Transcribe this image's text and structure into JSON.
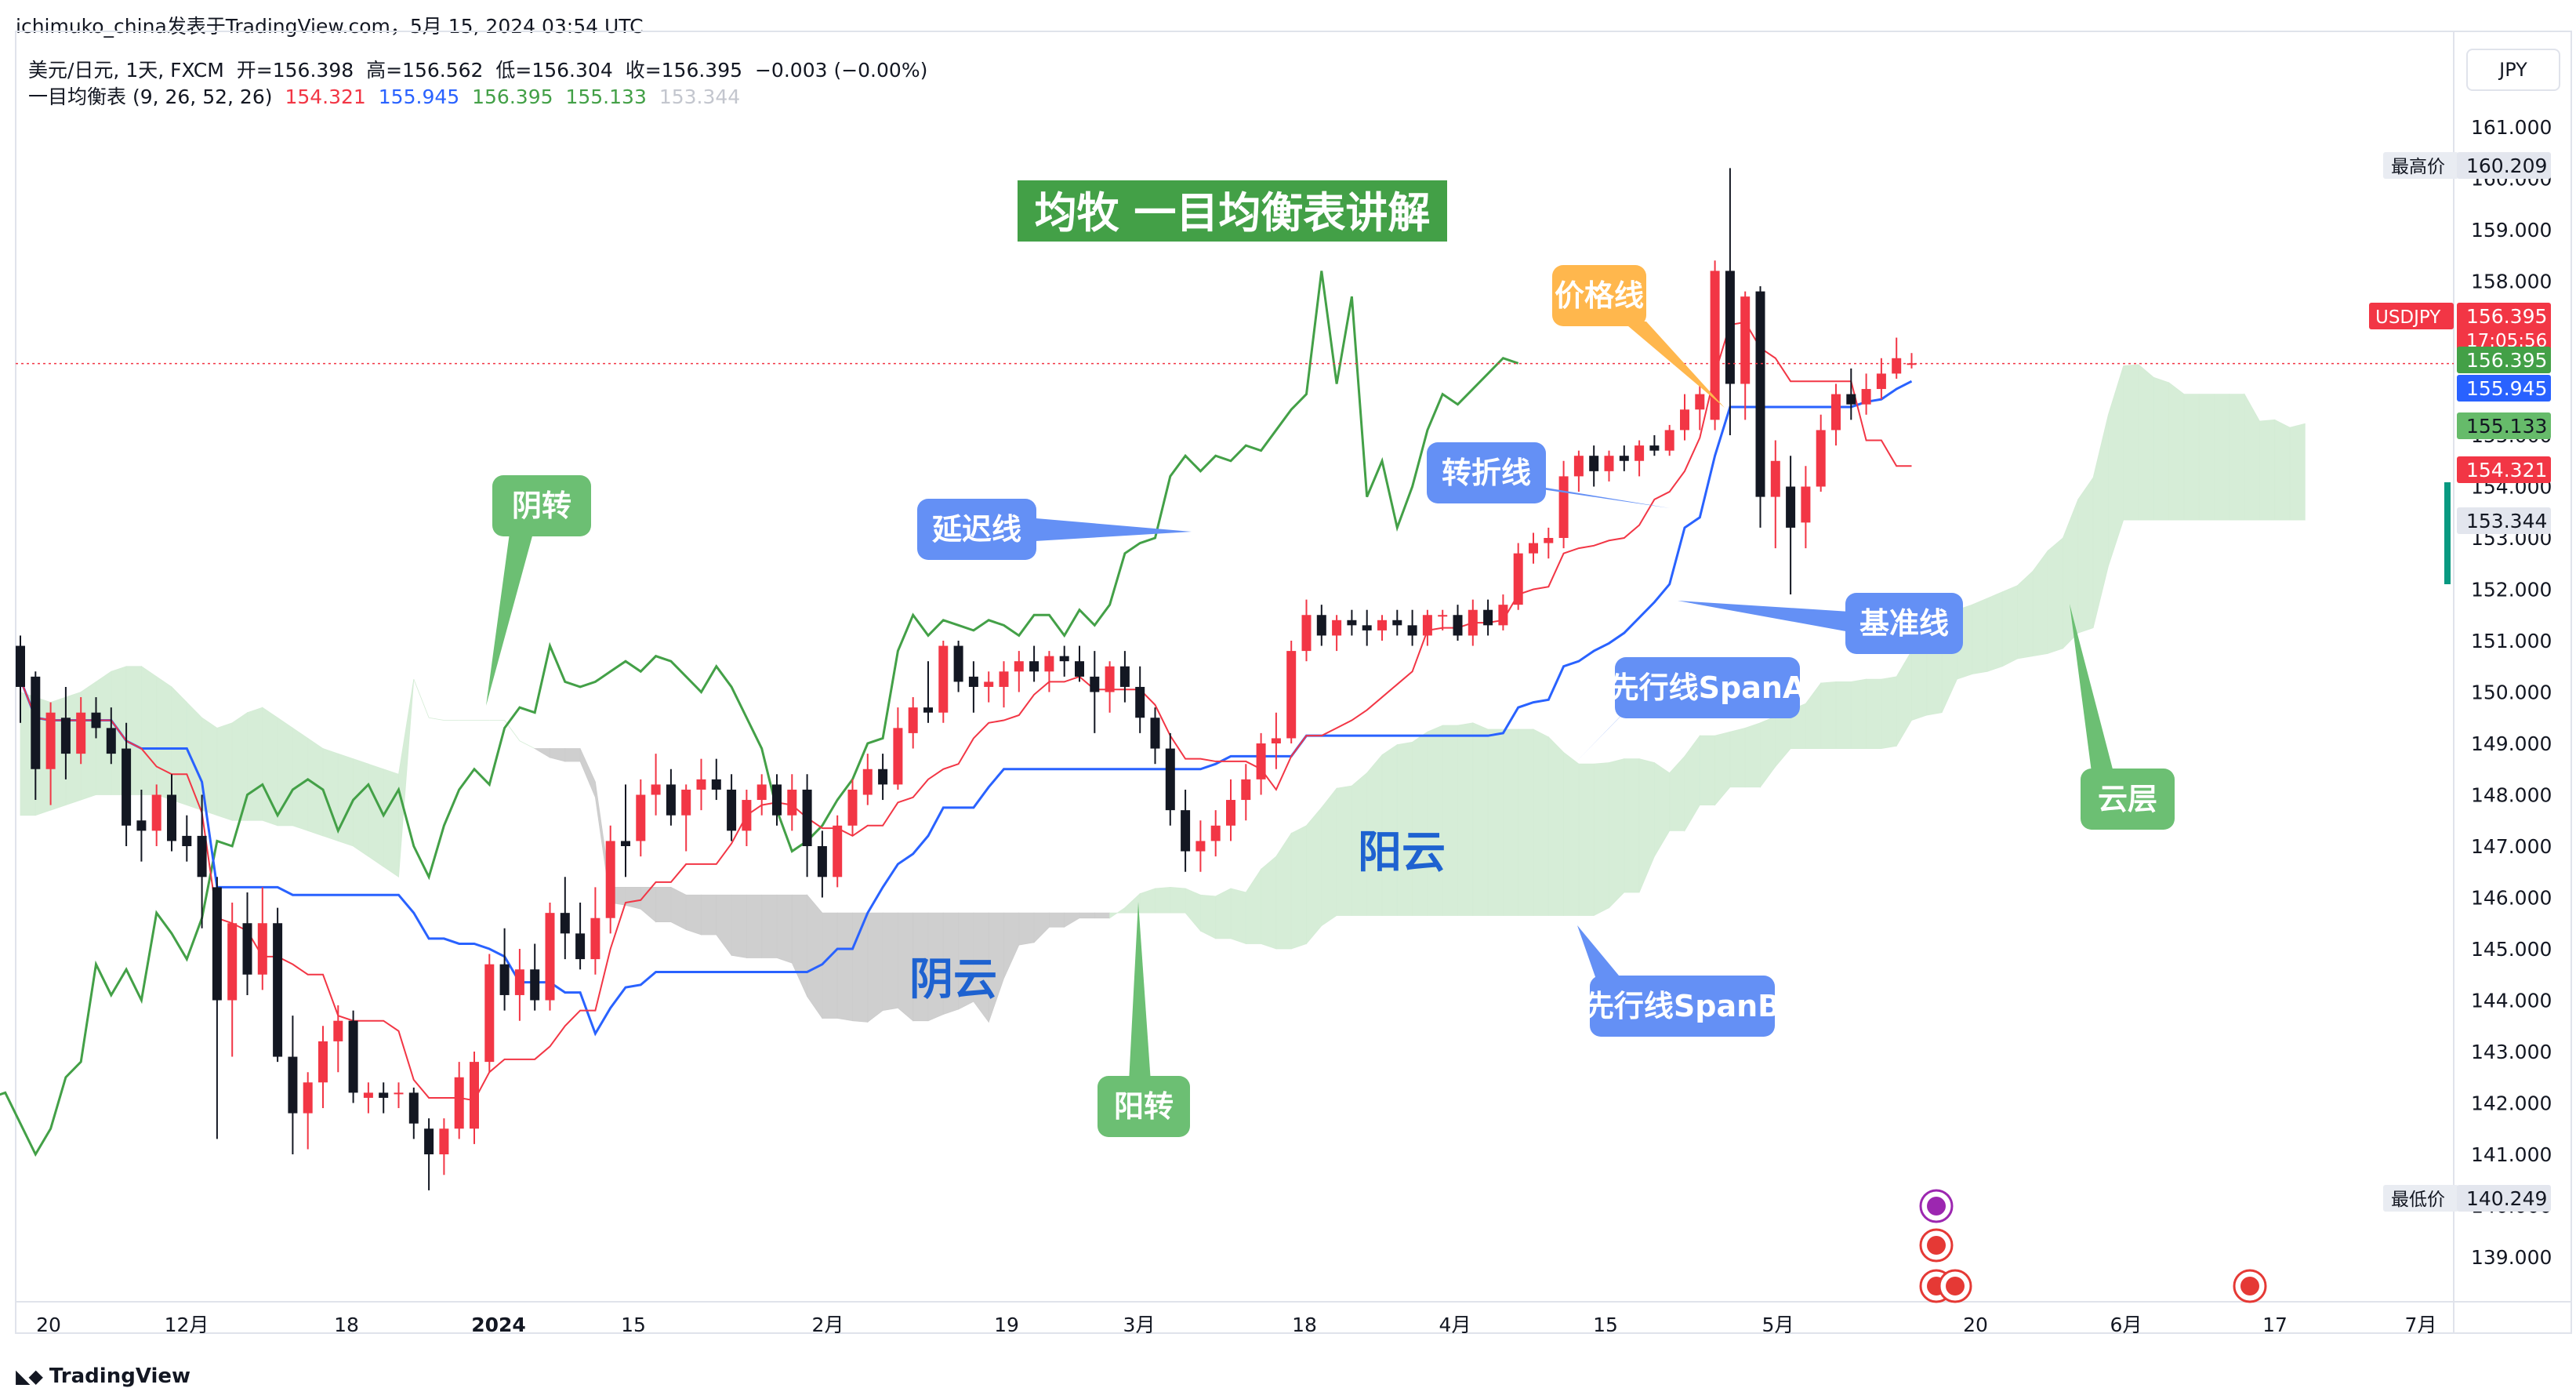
{
  "header": {
    "publish_line": "ichimuko_china发表于TradingView.com，5月 15, 2024 03:54 UTC"
  },
  "symbol_info": {
    "symbol": "美元/日元, 1天, FXCM",
    "open": "开=156.398",
    "high": "高=156.562",
    "low": "低=156.304",
    "close": "收=156.395",
    "change": "−0.003 (−0.00%)"
  },
  "indicator_info": {
    "name": "一目均衡表 (9, 26, 52, 26)",
    "values": [
      {
        "text": "154.321",
        "color": "#f23645"
      },
      {
        "text": "155.945",
        "color": "#2962ff"
      },
      {
        "text": "156.395",
        "color": "#43a047"
      },
      {
        "text": "155.133",
        "color": "#43a047"
      },
      {
        "text": "153.344",
        "color": "#c3c6ce"
      }
    ]
  },
  "currency_button": "JPY",
  "watermark": "TradingView",
  "colors": {
    "up": "#f23645",
    "down": "#131722",
    "tenkan": "#f23645",
    "kijun": "#2962ff",
    "chikou": "#43a047",
    "cloud_bull": "#d4ecd5",
    "cloud_bear": "#cccccc",
    "green_callout": "#6cbf73",
    "blue_callout": "#6490f5",
    "orange_callout": "#ffb74d"
  },
  "chart_data": {
    "type": "candlestick",
    "title": "均牧 一目均衡表讲解",
    "ylim": [
      138.4,
      162.0
    ],
    "y_ticks": [
      "161.000",
      "160.000",
      "159.000",
      "158.000",
      "157.000",
      "156.000",
      "155.000",
      "154.000",
      "153.000",
      "152.000",
      "151.000",
      "150.000",
      "149.000",
      "148.000",
      "147.000",
      "146.000",
      "145.000",
      "144.000",
      "143.000",
      "142.000",
      "141.000",
      "140.000",
      "139.000"
    ],
    "x_ticks": [
      "20",
      "12月",
      "18",
      "2024",
      "15",
      "2月",
      "19",
      "3月",
      "18",
      "4月",
      "15",
      "5月",
      "20",
      "6月",
      "17",
      "7月"
    ],
    "price_labels": [
      {
        "text": "最高价",
        "value": "160.209",
        "type": "grey"
      },
      {
        "text": "USDJPY",
        "value": "156.395",
        "sub": "17:05:56",
        "type": "red"
      },
      {
        "text": "",
        "value": "156.395",
        "type": "green"
      },
      {
        "text": "",
        "value": "155.945",
        "type": "blue"
      },
      {
        "text": "",
        "value": "155.133",
        "type": "green_light"
      },
      {
        "text": "",
        "value": "154.321",
        "type": "red"
      },
      {
        "text": "",
        "value": "153.344",
        "type": "grey"
      },
      {
        "text": "最低价",
        "value": "140.249",
        "type": "grey"
      }
    ],
    "candles": [
      [
        150.9,
        151.1,
        149.4,
        150.1
      ],
      [
        150.3,
        150.4,
        147.9,
        148.5
      ],
      [
        148.5,
        149.8,
        147.8,
        149.6
      ],
      [
        149.5,
        150.1,
        148.3,
        148.8
      ],
      [
        148.8,
        149.9,
        148.6,
        149.6
      ],
      [
        149.6,
        149.9,
        149.1,
        149.3
      ],
      [
        149.3,
        149.7,
        148.6,
        148.8
      ],
      [
        148.9,
        149.4,
        147.0,
        147.4
      ],
      [
        147.5,
        148.1,
        146.7,
        147.3
      ],
      [
        147.3,
        148.2,
        147.0,
        148.0
      ],
      [
        148.0,
        148.4,
        146.9,
        147.1
      ],
      [
        147.2,
        147.6,
        146.7,
        147.0
      ],
      [
        147.2,
        148.0,
        145.4,
        146.4
      ],
      [
        146.2,
        146.4,
        141.3,
        144.0
      ],
      [
        144.0,
        145.9,
        142.9,
        145.5
      ],
      [
        145.5,
        146.1,
        144.1,
        144.5
      ],
      [
        144.5,
        146.2,
        144.2,
        145.5
      ],
      [
        145.5,
        145.8,
        142.8,
        142.9
      ],
      [
        142.9,
        143.7,
        141.0,
        141.8
      ],
      [
        141.8,
        142.6,
        141.1,
        142.4
      ],
      [
        142.4,
        143.5,
        141.9,
        143.2
      ],
      [
        143.2,
        143.9,
        142.6,
        143.6
      ],
      [
        143.6,
        143.8,
        142.0,
        142.2
      ],
      [
        142.1,
        142.4,
        141.8,
        142.2
      ],
      [
        142.2,
        142.4,
        141.8,
        142.1
      ],
      [
        142.2,
        142.4,
        141.9,
        142.2
      ],
      [
        142.2,
        142.3,
        141.3,
        141.6
      ],
      [
        141.5,
        141.7,
        140.3,
        141.0
      ],
      [
        141.0,
        141.7,
        140.6,
        141.5
      ],
      [
        141.5,
        142.8,
        141.3,
        142.5
      ],
      [
        141.5,
        143.0,
        141.2,
        142.8
      ],
      [
        142.8,
        144.9,
        142.6,
        144.7
      ],
      [
        144.7,
        145.4,
        143.8,
        144.1
      ],
      [
        144.1,
        145.0,
        143.6,
        144.6
      ],
      [
        144.6,
        145.1,
        143.8,
        144.0
      ],
      [
        144.0,
        145.9,
        143.8,
        145.7
      ],
      [
        145.7,
        146.4,
        144.8,
        145.3
      ],
      [
        145.3,
        145.9,
        144.6,
        144.8
      ],
      [
        144.8,
        146.2,
        144.5,
        145.6
      ],
      [
        145.6,
        147.4,
        145.3,
        147.1
      ],
      [
        147.1,
        148.2,
        146.4,
        147.0
      ],
      [
        147.1,
        148.3,
        146.8,
        148.0
      ],
      [
        148.0,
        148.8,
        147.6,
        148.2
      ],
      [
        148.2,
        148.5,
        147.4,
        147.6
      ],
      [
        147.6,
        148.2,
        146.9,
        148.1
      ],
      [
        148.1,
        148.7,
        147.7,
        148.3
      ],
      [
        148.3,
        148.7,
        147.9,
        148.1
      ],
      [
        148.1,
        148.4,
        147.1,
        147.3
      ],
      [
        147.3,
        148.1,
        147.0,
        147.9
      ],
      [
        147.9,
        148.4,
        147.6,
        148.2
      ],
      [
        148.2,
        148.4,
        147.4,
        147.6
      ],
      [
        147.6,
        148.4,
        147.3,
        148.1
      ],
      [
        148.1,
        148.4,
        146.4,
        147.0
      ],
      [
        147.0,
        147.3,
        146.0,
        146.4
      ],
      [
        146.4,
        147.6,
        146.2,
        147.4
      ],
      [
        147.4,
        148.3,
        147.2,
        148.1
      ],
      [
        148.0,
        148.8,
        147.8,
        148.5
      ],
      [
        148.5,
        148.8,
        147.9,
        148.2
      ],
      [
        148.2,
        149.7,
        148.1,
        149.3
      ],
      [
        149.2,
        149.9,
        148.9,
        149.7
      ],
      [
        149.7,
        150.6,
        149.4,
        149.6
      ],
      [
        149.6,
        151.0,
        149.4,
        150.9
      ],
      [
        150.9,
        151.0,
        150.0,
        150.2
      ],
      [
        150.3,
        150.6,
        149.6,
        150.1
      ],
      [
        150.1,
        150.4,
        149.8,
        150.2
      ],
      [
        150.1,
        150.6,
        149.7,
        150.4
      ],
      [
        150.4,
        150.8,
        150.0,
        150.6
      ],
      [
        150.6,
        150.9,
        150.2,
        150.4
      ],
      [
        150.4,
        150.8,
        150.0,
        150.7
      ],
      [
        150.7,
        150.9,
        150.3,
        150.6
      ],
      [
        150.6,
        150.9,
        150.2,
        150.3
      ],
      [
        150.3,
        150.8,
        149.2,
        150.0
      ],
      [
        150.0,
        150.6,
        149.6,
        150.5
      ],
      [
        150.5,
        150.8,
        149.8,
        150.1
      ],
      [
        150.1,
        150.5,
        149.2,
        149.5
      ],
      [
        149.5,
        149.7,
        148.6,
        148.9
      ],
      [
        148.9,
        149.2,
        147.4,
        147.7
      ],
      [
        147.7,
        148.1,
        146.5,
        146.9
      ],
      [
        146.9,
        147.5,
        146.5,
        147.1
      ],
      [
        147.1,
        147.7,
        146.8,
        147.4
      ],
      [
        147.4,
        148.3,
        147.1,
        147.9
      ],
      [
        147.9,
        148.6,
        147.5,
        148.3
      ],
      [
        148.3,
        149.2,
        148.0,
        149.0
      ],
      [
        149.0,
        149.6,
        148.5,
        149.1
      ],
      [
        149.1,
        151.0,
        149.0,
        150.8
      ],
      [
        150.8,
        151.8,
        150.6,
        151.5
      ],
      [
        151.5,
        151.7,
        150.9,
        151.1
      ],
      [
        151.1,
        151.5,
        150.8,
        151.4
      ],
      [
        151.4,
        151.6,
        151.1,
        151.3
      ],
      [
        151.3,
        151.6,
        150.9,
        151.2
      ],
      [
        151.2,
        151.5,
        151.0,
        151.4
      ],
      [
        151.4,
        151.6,
        151.1,
        151.3
      ],
      [
        151.3,
        151.6,
        150.9,
        151.1
      ],
      [
        151.1,
        151.6,
        150.9,
        151.5
      ],
      [
        151.5,
        151.6,
        151.2,
        151.5
      ],
      [
        151.5,
        151.7,
        151.0,
        151.1
      ],
      [
        151.1,
        151.8,
        150.9,
        151.6
      ],
      [
        151.6,
        151.8,
        151.1,
        151.3
      ],
      [
        151.3,
        151.9,
        151.2,
        151.7
      ],
      [
        151.7,
        152.9,
        151.6,
        152.7
      ],
      [
        152.7,
        153.1,
        152.5,
        152.9
      ],
      [
        152.9,
        153.2,
        152.6,
        153.0
      ],
      [
        153.0,
        154.5,
        152.8,
        154.2
      ],
      [
        154.2,
        154.7,
        153.9,
        154.6
      ],
      [
        154.6,
        154.8,
        154.0,
        154.3
      ],
      [
        154.3,
        154.7,
        154.1,
        154.6
      ],
      [
        154.6,
        154.8,
        154.3,
        154.5
      ],
      [
        154.5,
        154.9,
        154.2,
        154.8
      ],
      [
        154.8,
        155.0,
        154.6,
        154.7
      ],
      [
        154.7,
        155.2,
        154.6,
        155.1
      ],
      [
        155.1,
        155.8,
        154.9,
        155.5
      ],
      [
        155.5,
        156.0,
        155.1,
        155.8
      ],
      [
        155.3,
        158.4,
        155.1,
        158.2
      ],
      [
        158.2,
        160.2,
        155.0,
        156.0
      ],
      [
        156.0,
        157.8,
        155.3,
        157.7
      ],
      [
        157.8,
        157.9,
        153.2,
        153.8
      ],
      [
        153.8,
        154.9,
        152.8,
        154.5
      ],
      [
        154.0,
        154.6,
        151.9,
        153.2
      ],
      [
        153.3,
        154.4,
        152.8,
        154.0
      ],
      [
        154.0,
        155.4,
        153.9,
        155.1
      ],
      [
        155.1,
        156.0,
        154.8,
        155.8
      ],
      [
        155.8,
        156.3,
        155.3,
        155.6
      ],
      [
        155.6,
        156.2,
        155.4,
        155.9
      ],
      [
        155.9,
        156.5,
        155.7,
        156.2
      ],
      [
        156.2,
        156.9,
        156.1,
        156.5
      ],
      [
        156.4,
        156.6,
        156.3,
        156.4
      ]
    ],
    "series": [
      {
        "name": "转折线",
        "values": []
      },
      {
        "name": "基准线",
        "values": []
      },
      {
        "name": "延迟线",
        "values": []
      },
      {
        "name": "先行线SpanA",
        "values": []
      },
      {
        "name": "先行线SpanB",
        "values": []
      }
    ],
    "annotations": [
      {
        "text": "价格线",
        "color": "#ffb74d"
      },
      {
        "text": "转折线",
        "color": "#6490f5"
      },
      {
        "text": "延迟线",
        "color": "#6490f5"
      },
      {
        "text": "基准线",
        "color": "#6490f5"
      },
      {
        "text": "先行线SpanA",
        "color": "#6490f5"
      },
      {
        "text": "先行线SpanB",
        "color": "#6490f5"
      },
      {
        "text": "阴转",
        "color": "#6cbf73"
      },
      {
        "text": "阳转",
        "color": "#6cbf73"
      },
      {
        "text": "云层",
        "color": "#6cbf73"
      },
      {
        "text": "阳云",
        "color": "#1e62d0"
      },
      {
        "text": "阴云",
        "color": "#1e62d0"
      }
    ]
  }
}
